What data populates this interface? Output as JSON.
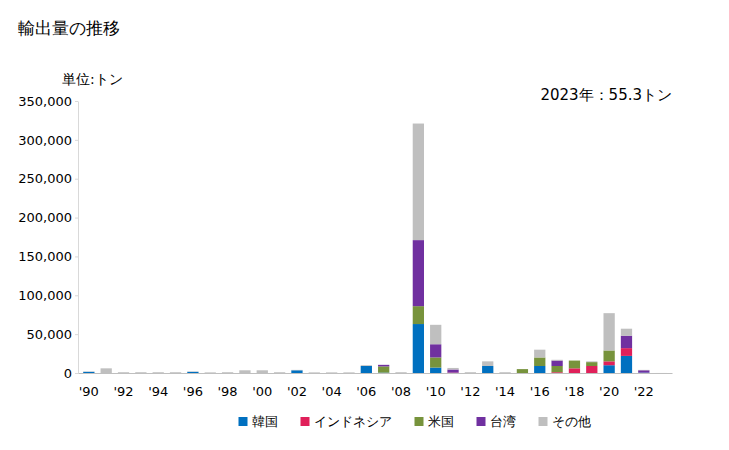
{
  "chart_data": {
    "type": "bar",
    "stacked": true,
    "grid": false,
    "legend": "bottom",
    "title": "輸出量の推移",
    "y_label": "単位:トン",
    "annotation": "2023年：55.3トン",
    "categories": [
      "'90",
      null,
      "'92",
      null,
      "'94",
      null,
      "'96",
      null,
      "'98",
      null,
      "'00",
      null,
      "'02",
      null,
      "'04",
      null,
      "'06",
      null,
      "'08",
      null,
      "'10",
      null,
      "'12",
      null,
      "'14",
      null,
      "'16",
      null,
      "'18",
      null,
      "'20",
      null,
      "'22",
      null
    ],
    "series": [
      {
        "name": "韓国",
        "color": "#0070c0",
        "values": [
          1500,
          0,
          0,
          0,
          0,
          0,
          1500,
          0,
          0,
          0,
          0,
          0,
          3500,
          0,
          0,
          0,
          9000,
          500,
          0,
          63000,
          7000,
          0,
          0,
          9000,
          0,
          0,
          9000,
          0,
          0,
          0,
          10000,
          22000,
          500,
          0
        ]
      },
      {
        "name": "インドネシア",
        "color": "#e0205a",
        "values": [
          0,
          0,
          0,
          0,
          0,
          0,
          0,
          0,
          0,
          0,
          0,
          0,
          0,
          0,
          0,
          0,
          0,
          0,
          0,
          0,
          0,
          500,
          0,
          0,
          0,
          0,
          0,
          1000,
          6000,
          9000,
          5000,
          10000,
          0,
          0
        ]
      },
      {
        "name": "米国",
        "color": "#77933c",
        "values": [
          0,
          0,
          0,
          0,
          0,
          0,
          0,
          0,
          0,
          0,
          0,
          0,
          0,
          0,
          0,
          0,
          0,
          8000,
          0,
          23000,
          13000,
          0,
          0,
          0,
          0,
          5000,
          11000,
          8000,
          10000,
          5000,
          14000,
          0,
          0,
          0
        ]
      },
      {
        "name": "台湾",
        "color": "#7030a0",
        "values": [
          0,
          0,
          0,
          0,
          0,
          0,
          0,
          0,
          0,
          0,
          0,
          0,
          0,
          0,
          0,
          0,
          0,
          2000,
          0,
          85000,
          17000,
          4000,
          0,
          0,
          0,
          0,
          0,
          7000,
          0,
          0,
          0,
          16000,
          3000,
          0
        ]
      },
      {
        "name": "その他",
        "color": "#bfbfbf",
        "values": [
          500,
          6000,
          1000,
          1000,
          1000,
          1000,
          500,
          800,
          1000,
          3500,
          3500,
          1000,
          500,
          800,
          800,
          800,
          1000,
          0,
          1000,
          150000,
          25000,
          2000,
          1000,
          6000,
          1000,
          0,
          10000,
          1000,
          0,
          1000,
          48000,
          9000,
          500,
          55.3
        ]
      }
    ],
    "ylim": [
      0,
      350000
    ],
    "yticks": [
      0,
      {
        "value": 50000,
        "label": "50,000"
      },
      {
        "value": 100000,
        "label": "100,000"
      },
      {
        "value": 150000,
        "label": "150,000"
      },
      {
        "value": 200000,
        "label": "200,000"
      },
      {
        "value": 250000,
        "label": "250,000"
      },
      {
        "value": 300000,
        "label": "300,000"
      },
      {
        "value": 350000,
        "label": "350,000"
      }
    ]
  }
}
